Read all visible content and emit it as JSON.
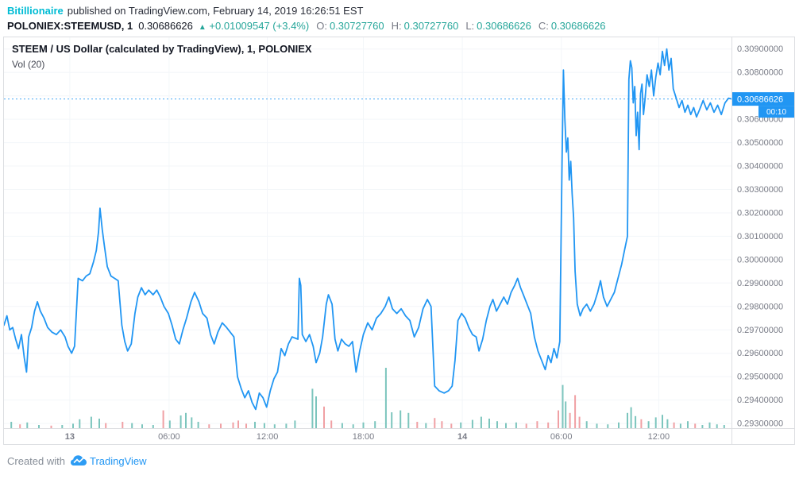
{
  "header": {
    "author": "Bitillionaire",
    "published_text": "published on TradingView.com, February 14, 2019 16:26:51 EST",
    "symbol": "POLONIEX:STEEMUSD, 1",
    "last_price": "0.30686626",
    "change_arrow": "▲",
    "change_text": "+0.01009547 (+3.4%)",
    "ohlc": [
      {
        "label": "O:",
        "value": "0.30727760"
      },
      {
        "label": "H:",
        "value": "0.30727760"
      },
      {
        "label": "L:",
        "value": "0.30686626"
      },
      {
        "label": "C:",
        "value": "0.30686626"
      }
    ]
  },
  "chart": {
    "title": "STEEM / US Dollar (calculated by TradingView), 1, POLONIEX",
    "indicator_label": "Vol (20)"
  },
  "price_scale": {
    "label": "0.30686626",
    "countdown": "00:10"
  },
  "footer": {
    "created_with": "Created with",
    "brand": "TradingView"
  },
  "colors": {
    "line": "#2196f3",
    "accent": "#2196f3",
    "up": "#7cc5bd",
    "down": "#f0a0a4",
    "author": "#00bcd4",
    "positive": "#26a69a",
    "axis_text": "#787b86",
    "grid": "#f3f6f9",
    "border": "#dcdee1",
    "title_text": "#131722",
    "legend_text": "#434651",
    "muted": "#878e98",
    "brand": "#2196f3"
  },
  "chart_data": {
    "type": "line",
    "title": "STEEM / US Dollar (calculated by TradingView), 1, POLONIEX",
    "symbol": "POLONIEX:STEEMUSD",
    "interval": "1",
    "exchange": "POLONIEX",
    "last_price": 0.30686626,
    "open": 0.3072776,
    "high": 0.3072776,
    "low": 0.30686626,
    "close": 0.30686626,
    "change_abs": 0.01009547,
    "change_pct": 3.4,
    "countdown": "00:10",
    "legend_vol": "Vol (20)",
    "ylim": [
      0.2928,
      0.3095
    ],
    "y_ticks": [
      0.293,
      0.294,
      0.295,
      0.296,
      0.297,
      0.298,
      0.299,
      0.3,
      0.301,
      0.302,
      0.303,
      0.304,
      0.305,
      0.306,
      0.307,
      0.308,
      0.309
    ],
    "x_ticks": [
      {
        "f": 0.0905,
        "label": "13",
        "day": true
      },
      {
        "f": 0.227,
        "label": "06:00",
        "day": false
      },
      {
        "f": 0.362,
        "label": "12:00",
        "day": false
      },
      {
        "f": 0.494,
        "label": "18:00",
        "day": false
      },
      {
        "f": 0.63,
        "label": "14",
        "day": true
      },
      {
        "f": 0.766,
        "label": "06:00",
        "day": false
      },
      {
        "f": 0.9,
        "label": "12:00",
        "day": false
      }
    ],
    "price_series": {
      "x": [
        0.0,
        0.004,
        0.008,
        0.012,
        0.016,
        0.02,
        0.024,
        0.028,
        0.031,
        0.034,
        0.038,
        0.042,
        0.046,
        0.05,
        0.055,
        0.06,
        0.066,
        0.072,
        0.078,
        0.084,
        0.088,
        0.093,
        0.097,
        0.102,
        0.108,
        0.113,
        0.118,
        0.123,
        0.127,
        0.13,
        0.132,
        0.135,
        0.138,
        0.142,
        0.147,
        0.152,
        0.157,
        0.162,
        0.166,
        0.17,
        0.175,
        0.18,
        0.184,
        0.189,
        0.194,
        0.199,
        0.205,
        0.21,
        0.215,
        0.22,
        0.226,
        0.231,
        0.236,
        0.241,
        0.246,
        0.251,
        0.257,
        0.262,
        0.268,
        0.273,
        0.279,
        0.284,
        0.289,
        0.294,
        0.3,
        0.306,
        0.311,
        0.316,
        0.321,
        0.326,
        0.331,
        0.336,
        0.341,
        0.346,
        0.351,
        0.356,
        0.361,
        0.366,
        0.371,
        0.376,
        0.381,
        0.386,
        0.391,
        0.396,
        0.404,
        0.406,
        0.408,
        0.41,
        0.415,
        0.42,
        0.425,
        0.429,
        0.434,
        0.438,
        0.443,
        0.446,
        0.451,
        0.455,
        0.459,
        0.464,
        0.469,
        0.474,
        0.479,
        0.484,
        0.489,
        0.494,
        0.5,
        0.506,
        0.512,
        0.518,
        0.524,
        0.529,
        0.534,
        0.54,
        0.546,
        0.552,
        0.558,
        0.564,
        0.57,
        0.576,
        0.582,
        0.587,
        0.592,
        0.598,
        0.605,
        0.611,
        0.616,
        0.62,
        0.624,
        0.629,
        0.634,
        0.639,
        0.644,
        0.649,
        0.653,
        0.658,
        0.663,
        0.668,
        0.672,
        0.677,
        0.682,
        0.687,
        0.692,
        0.697,
        0.702,
        0.706,
        0.71,
        0.714,
        0.719,
        0.724,
        0.729,
        0.734,
        0.739,
        0.744,
        0.748,
        0.752,
        0.756,
        0.76,
        0.764,
        0.767,
        0.769,
        0.771,
        0.773,
        0.775,
        0.777,
        0.779,
        0.781,
        0.783,
        0.785,
        0.788,
        0.792,
        0.796,
        0.801,
        0.806,
        0.811,
        0.816,
        0.82,
        0.824,
        0.829,
        0.834,
        0.839,
        0.844,
        0.849,
        0.853,
        0.857,
        0.859,
        0.861,
        0.863,
        0.865,
        0.867,
        0.869,
        0.871,
        0.873,
        0.875,
        0.877,
        0.879,
        0.881,
        0.884,
        0.887,
        0.89,
        0.893,
        0.896,
        0.899,
        0.902,
        0.905,
        0.908,
        0.911,
        0.914,
        0.917,
        0.92,
        0.924,
        0.928,
        0.932,
        0.936,
        0.94,
        0.944,
        0.948,
        0.952,
        0.956,
        0.961,
        0.966,
        0.971,
        0.976,
        0.981,
        0.986,
        0.991,
        0.996,
        1.0
      ],
      "y": [
        0.2972,
        0.2976,
        0.297,
        0.2971,
        0.2966,
        0.2962,
        0.2968,
        0.2958,
        0.2952,
        0.2967,
        0.2971,
        0.2978,
        0.2982,
        0.2978,
        0.2975,
        0.2971,
        0.2969,
        0.2968,
        0.297,
        0.2967,
        0.2963,
        0.296,
        0.2963,
        0.2992,
        0.2991,
        0.2993,
        0.2994,
        0.2999,
        0.3004,
        0.3012,
        0.3022,
        0.3013,
        0.3006,
        0.2997,
        0.2993,
        0.2992,
        0.2991,
        0.2972,
        0.2965,
        0.2961,
        0.2964,
        0.2977,
        0.2984,
        0.2988,
        0.2985,
        0.2987,
        0.2985,
        0.2987,
        0.2984,
        0.298,
        0.2977,
        0.2972,
        0.2966,
        0.2964,
        0.297,
        0.2975,
        0.2982,
        0.2986,
        0.2982,
        0.2977,
        0.2975,
        0.2968,
        0.2964,
        0.2969,
        0.2973,
        0.2971,
        0.2969,
        0.2967,
        0.295,
        0.2945,
        0.2941,
        0.2944,
        0.2939,
        0.2936,
        0.2943,
        0.2941,
        0.2937,
        0.2944,
        0.2949,
        0.2952,
        0.2962,
        0.2959,
        0.2964,
        0.2967,
        0.2966,
        0.2992,
        0.2989,
        0.2968,
        0.2965,
        0.2968,
        0.2963,
        0.2956,
        0.296,
        0.2967,
        0.2981,
        0.2985,
        0.2981,
        0.2966,
        0.2961,
        0.2966,
        0.2964,
        0.2963,
        0.2965,
        0.2952,
        0.2961,
        0.2968,
        0.2973,
        0.297,
        0.2975,
        0.2977,
        0.298,
        0.2984,
        0.2979,
        0.2977,
        0.2979,
        0.2976,
        0.2974,
        0.2967,
        0.2971,
        0.2979,
        0.2983,
        0.298,
        0.2946,
        0.2944,
        0.2943,
        0.2944,
        0.2946,
        0.2957,
        0.2974,
        0.2977,
        0.2975,
        0.2971,
        0.2968,
        0.2967,
        0.2961,
        0.2966,
        0.2974,
        0.298,
        0.2983,
        0.2978,
        0.2981,
        0.2984,
        0.2981,
        0.2986,
        0.2989,
        0.2992,
        0.2988,
        0.2985,
        0.2981,
        0.2977,
        0.2967,
        0.2961,
        0.2957,
        0.2953,
        0.2959,
        0.2956,
        0.2962,
        0.2958,
        0.2965,
        0.304,
        0.3081,
        0.306,
        0.3046,
        0.3052,
        0.3034,
        0.3042,
        0.3028,
        0.3018,
        0.2995,
        0.2981,
        0.2976,
        0.2979,
        0.2981,
        0.2978,
        0.2981,
        0.2986,
        0.2991,
        0.2984,
        0.298,
        0.2983,
        0.2986,
        0.2992,
        0.2998,
        0.3004,
        0.301,
        0.3077,
        0.3085,
        0.3082,
        0.3067,
        0.3074,
        0.3053,
        0.3063,
        0.3047,
        0.3071,
        0.3075,
        0.3062,
        0.3068,
        0.3079,
        0.3074,
        0.3081,
        0.307,
        0.3078,
        0.3084,
        0.3079,
        0.3089,
        0.3083,
        0.309,
        0.3081,
        0.3086,
        0.3073,
        0.3069,
        0.3065,
        0.3068,
        0.3063,
        0.3066,
        0.3062,
        0.3065,
        0.3061,
        0.3064,
        0.3068,
        0.3064,
        0.3067,
        0.3063,
        0.3066,
        0.3062,
        0.3067,
        0.3069,
        0.30687
      ]
    },
    "volume": [
      [
        0.01,
        0.1,
        "u"
      ],
      [
        0.022,
        0.06,
        "d"
      ],
      [
        0.032,
        0.09,
        "u"
      ],
      [
        0.048,
        0.05,
        "u"
      ],
      [
        0.065,
        0.04,
        "d"
      ],
      [
        0.08,
        0.05,
        "u"
      ],
      [
        0.095,
        0.07,
        "u"
      ],
      [
        0.104,
        0.14,
        "u"
      ],
      [
        0.12,
        0.18,
        "u"
      ],
      [
        0.131,
        0.15,
        "u"
      ],
      [
        0.14,
        0.08,
        "d"
      ],
      [
        0.163,
        0.1,
        "d"
      ],
      [
        0.176,
        0.08,
        "u"
      ],
      [
        0.19,
        0.06,
        "u"
      ],
      [
        0.205,
        0.05,
        "u"
      ],
      [
        0.219,
        0.28,
        "d"
      ],
      [
        0.228,
        0.12,
        "u"
      ],
      [
        0.243,
        0.2,
        "u"
      ],
      [
        0.25,
        0.24,
        "u"
      ],
      [
        0.258,
        0.17,
        "u"
      ],
      [
        0.267,
        0.1,
        "u"
      ],
      [
        0.282,
        0.06,
        "d"
      ],
      [
        0.298,
        0.07,
        "d"
      ],
      [
        0.315,
        0.09,
        "d"
      ],
      [
        0.322,
        0.12,
        "d"
      ],
      [
        0.333,
        0.07,
        "d"
      ],
      [
        0.345,
        0.1,
        "u"
      ],
      [
        0.358,
        0.08,
        "u"
      ],
      [
        0.372,
        0.06,
        "u"
      ],
      [
        0.388,
        0.07,
        "u"
      ],
      [
        0.4,
        0.12,
        "u"
      ],
      [
        0.424,
        0.62,
        "u"
      ],
      [
        0.429,
        0.5,
        "u"
      ],
      [
        0.44,
        0.34,
        "d"
      ],
      [
        0.45,
        0.12,
        "d"
      ],
      [
        0.465,
        0.08,
        "u"
      ],
      [
        0.48,
        0.06,
        "u"
      ],
      [
        0.494,
        0.09,
        "u"
      ],
      [
        0.51,
        0.11,
        "u"
      ],
      [
        0.525,
        0.95,
        "u"
      ],
      [
        0.533,
        0.25,
        "u"
      ],
      [
        0.545,
        0.28,
        "u"
      ],
      [
        0.556,
        0.24,
        "u"
      ],
      [
        0.568,
        0.1,
        "d"
      ],
      [
        0.58,
        0.08,
        "u"
      ],
      [
        0.592,
        0.16,
        "d"
      ],
      [
        0.602,
        0.11,
        "d"
      ],
      [
        0.615,
        0.07,
        "d"
      ],
      [
        0.628,
        0.09,
        "u"
      ],
      [
        0.644,
        0.13,
        "u"
      ],
      [
        0.656,
        0.18,
        "u"
      ],
      [
        0.667,
        0.15,
        "u"
      ],
      [
        0.678,
        0.11,
        "u"
      ],
      [
        0.69,
        0.08,
        "u"
      ],
      [
        0.704,
        0.09,
        "u"
      ],
      [
        0.718,
        0.07,
        "d"
      ],
      [
        0.733,
        0.11,
        "d"
      ],
      [
        0.748,
        0.09,
        "d"
      ],
      [
        0.762,
        0.28,
        "d"
      ],
      [
        0.768,
        0.68,
        "u"
      ],
      [
        0.772,
        0.42,
        "u"
      ],
      [
        0.778,
        0.24,
        "d"
      ],
      [
        0.785,
        0.52,
        "d"
      ],
      [
        0.791,
        0.18,
        "d"
      ],
      [
        0.801,
        0.11,
        "u"
      ],
      [
        0.815,
        0.07,
        "u"
      ],
      [
        0.83,
        0.06,
        "u"
      ],
      [
        0.845,
        0.09,
        "u"
      ],
      [
        0.857,
        0.24,
        "u"
      ],
      [
        0.862,
        0.33,
        "u"
      ],
      [
        0.868,
        0.19,
        "u"
      ],
      [
        0.876,
        0.14,
        "d"
      ],
      [
        0.886,
        0.11,
        "u"
      ],
      [
        0.896,
        0.17,
        "u"
      ],
      [
        0.905,
        0.21,
        "u"
      ],
      [
        0.912,
        0.14,
        "u"
      ],
      [
        0.921,
        0.09,
        "d"
      ],
      [
        0.93,
        0.07,
        "u"
      ],
      [
        0.94,
        0.11,
        "u"
      ],
      [
        0.95,
        0.07,
        "d"
      ],
      [
        0.96,
        0.05,
        "u"
      ],
      [
        0.97,
        0.09,
        "u"
      ],
      [
        0.98,
        0.06,
        "u"
      ],
      [
        0.99,
        0.05,
        "u"
      ]
    ]
  }
}
